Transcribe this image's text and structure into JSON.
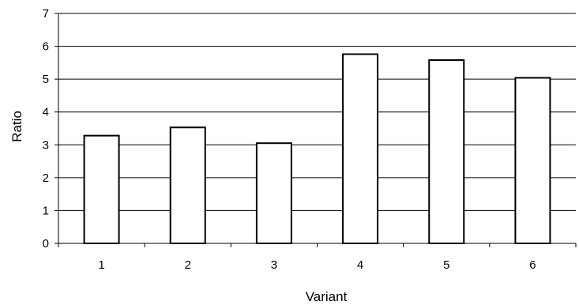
{
  "chart_data": {
    "type": "bar",
    "title": "",
    "xlabel": "Variant",
    "ylabel": "Ratio",
    "categories": [
      "1",
      "2",
      "3",
      "4",
      "5",
      "6"
    ],
    "values": [
      3.28,
      3.53,
      3.05,
      5.76,
      5.58,
      5.04
    ],
    "ylim": [
      0,
      7
    ],
    "yticks": [
      "0",
      "1",
      "2",
      "3",
      "4",
      "5",
      "6",
      "7"
    ],
    "grid": true,
    "legend": "none",
    "colors": {
      "bar_fill": "#ffffff",
      "bar_stroke": "#000000",
      "grid": "#000000",
      "axis": "#000000"
    }
  }
}
